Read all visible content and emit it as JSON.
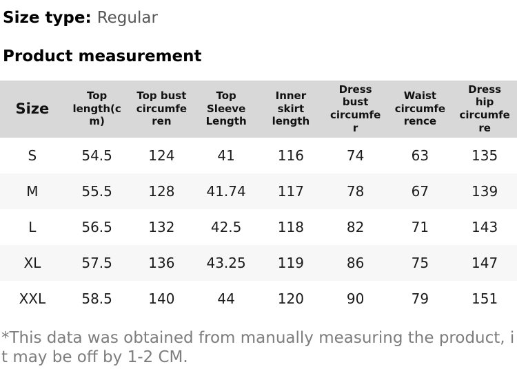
{
  "size_type": {
    "label": "Size type:",
    "value": "Regular"
  },
  "section_title": "Product measurement",
  "table": {
    "columns": [
      "Size",
      "Top length(cm)",
      "Top bust circumferen",
      "Top Sleeve Length",
      "Inner skirt length",
      "Dress bust circumfer",
      "Waist circumference",
      "Dress hip circumfere"
    ],
    "rows": [
      [
        "S",
        "54.5",
        "124",
        "41",
        "116",
        "74",
        "63",
        "135"
      ],
      [
        "M",
        "55.5",
        "128",
        "41.74",
        "117",
        "78",
        "67",
        "139"
      ],
      [
        "L",
        "56.5",
        "132",
        "42.5",
        "118",
        "82",
        "71",
        "143"
      ],
      [
        "XL",
        "57.5",
        "136",
        "43.25",
        "119",
        "86",
        "75",
        "147"
      ],
      [
        "XXL",
        "58.5",
        "140",
        "44",
        "120",
        "90",
        "79",
        "151"
      ]
    ]
  },
  "footnote": "*This data was obtained from manually measuring the product, it may be off by 1-2 CM.",
  "colors": {
    "header_bg": "#d8d8d8",
    "stripe_bg": "#f7f7f7",
    "text": "#1b1b1b",
    "muted": "#575757",
    "footnote": "#7d7d7d"
  }
}
